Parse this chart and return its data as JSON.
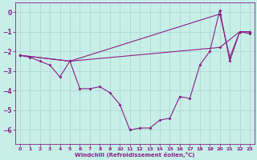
{
  "xlabel": "Windchill (Refroidissement éolien,°C)",
  "background_color": "#c8eee8",
  "grid_color": "#b0d8d4",
  "line_color": "#882288",
  "spine_color": "#882288",
  "xlim": [
    -0.5,
    23.5
  ],
  "ylim": [
    -6.7,
    0.5
  ],
  "yticks": [
    0,
    -1,
    -2,
    -3,
    -4,
    -5,
    -6
  ],
  "xticks": [
    0,
    1,
    2,
    3,
    4,
    5,
    6,
    7,
    8,
    9,
    10,
    11,
    12,
    13,
    14,
    15,
    16,
    17,
    18,
    19,
    20,
    21,
    22,
    23
  ],
  "line1": [
    [
      0,
      -2.2
    ],
    [
      1,
      -2.3
    ],
    [
      2,
      -2.5
    ],
    [
      3,
      -2.7
    ],
    [
      4,
      -3.3
    ],
    [
      5,
      -2.5
    ],
    [
      6,
      -3.9
    ],
    [
      7,
      -3.9
    ],
    [
      8,
      -3.8
    ],
    [
      9,
      -4.1
    ],
    [
      10,
      -4.7
    ],
    [
      11,
      -6.0
    ],
    [
      12,
      -5.9
    ],
    [
      13,
      -5.9
    ],
    [
      14,
      -5.5
    ],
    [
      15,
      -5.4
    ],
    [
      16,
      -4.3
    ],
    [
      17,
      -4.4
    ],
    [
      18,
      -2.7
    ],
    [
      19,
      -2.0
    ],
    [
      20,
      0.1
    ],
    [
      21,
      -2.5
    ],
    [
      22,
      -1.0
    ],
    [
      23,
      -1.1
    ]
  ],
  "line2": [
    [
      0,
      -2.2
    ],
    [
      5,
      -2.5
    ],
    [
      20,
      -1.8
    ],
    [
      22,
      -1.0
    ],
    [
      23,
      -1.0
    ]
  ],
  "line3": [
    [
      0,
      -2.2
    ],
    [
      5,
      -2.5
    ],
    [
      20,
      -0.1
    ],
    [
      21,
      -2.3
    ],
    [
      22,
      -1.0
    ],
    [
      23,
      -1.0
    ]
  ]
}
